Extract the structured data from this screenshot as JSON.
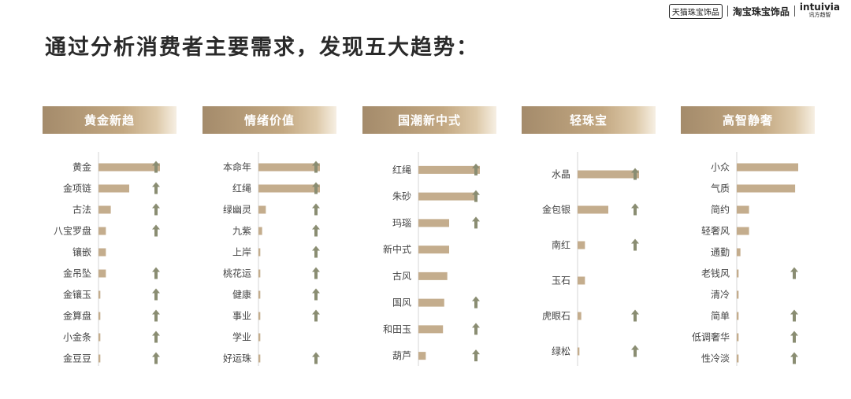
{
  "header": {
    "logos": [
      "天猫珠宝饰品",
      "淘宝珠宝饰品",
      "intuivia",
      "讯方趋智"
    ]
  },
  "page_title": "通过分析消费者主要需求，发现五大趋势：",
  "colors": {
    "bar": "#c4ad8d",
    "arrow": "#8a8d72",
    "header_gradient_start": "#a48b6b"
  },
  "chart_data": [
    {
      "type": "bar",
      "title": "黄金新趋",
      "categories": [
        "黄金",
        "金项链",
        "古法",
        "八宝罗盘",
        "镶嵌",
        "金吊坠",
        "金镶玉",
        "金算盘",
        "小金条",
        "金豆豆"
      ],
      "values": [
        100,
        50,
        20,
        12,
        12,
        12,
        3,
        3,
        3,
        3
      ],
      "trend_up": [
        true,
        true,
        true,
        true,
        false,
        true,
        true,
        true,
        true,
        true
      ]
    },
    {
      "type": "bar",
      "title": "情绪价值",
      "categories": [
        "本命年",
        "红绳",
        "绿幽灵",
        "九紫",
        "上岸",
        "桃花运",
        "健康",
        "事业",
        "学业",
        "好运珠"
      ],
      "values": [
        100,
        100,
        12,
        6,
        3,
        3,
        3,
        3,
        3,
        3
      ],
      "trend_up": [
        true,
        true,
        true,
        true,
        true,
        true,
        true,
        true,
        false,
        true
      ]
    },
    {
      "type": "bar",
      "title": "国潮新中式",
      "categories": [
        "红绳",
        "朱砂",
        "玛瑙",
        "新中式",
        "古风",
        "国风",
        "和田玉",
        "葫芦"
      ],
      "values": [
        100,
        95,
        50,
        50,
        47,
        42,
        40,
        12
      ],
      "trend_up": [
        true,
        true,
        true,
        false,
        false,
        true,
        true,
        true
      ]
    },
    {
      "type": "bar",
      "title": "轻珠宝",
      "categories": [
        "水晶",
        "金包银",
        "南红",
        "玉石",
        "虎眼石",
        "绿松"
      ],
      "values": [
        100,
        50,
        12,
        12,
        6,
        3
      ],
      "trend_up": [
        true,
        true,
        true,
        false,
        true,
        true
      ]
    },
    {
      "type": "bar",
      "title": "高智静奢",
      "categories": [
        "小众",
        "气质",
        "简约",
        "轻奢风",
        "通勤",
        "老钱风",
        "清冷",
        "简单",
        "低调奢华",
        "性冷淡"
      ],
      "values": [
        100,
        95,
        20,
        20,
        6,
        3,
        3,
        3,
        3,
        3
      ],
      "trend_up": [
        false,
        false,
        false,
        false,
        false,
        true,
        false,
        true,
        true,
        true
      ]
    }
  ]
}
